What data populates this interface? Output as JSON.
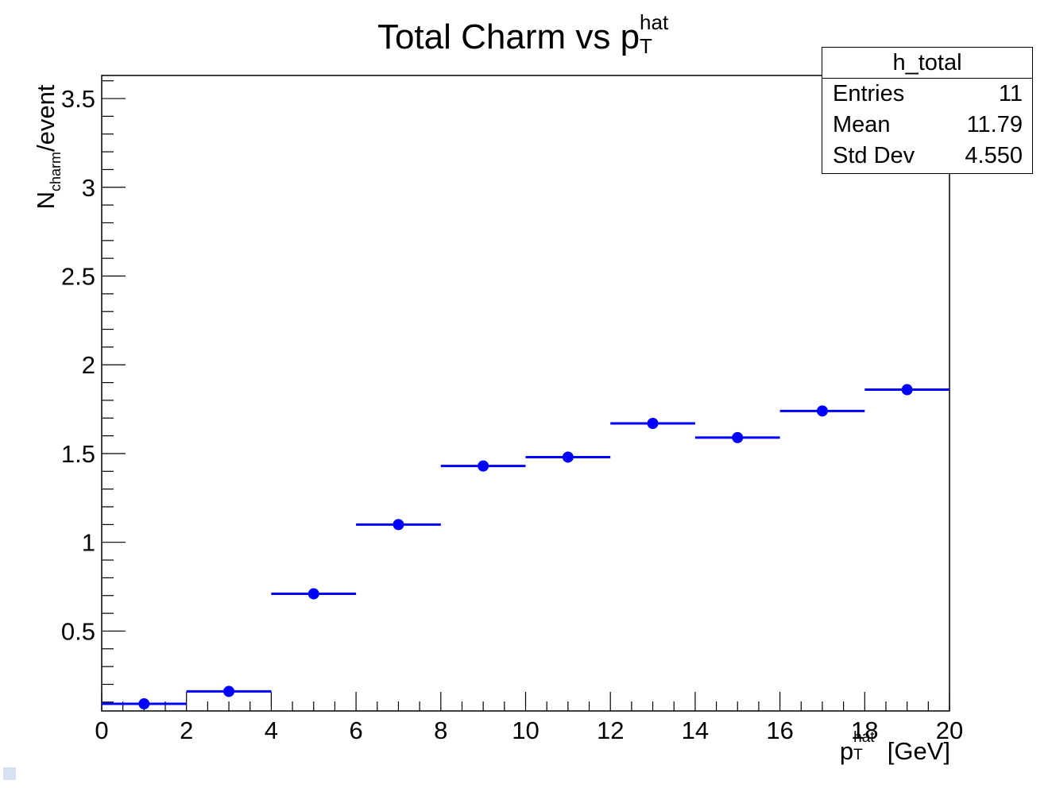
{
  "chart_data": {
    "type": "scatter",
    "title": "Total Charm vs p_T^hat",
    "title_parts": {
      "main": "Total Charm vs p",
      "sub": "T",
      "sup": "hat"
    },
    "xlabel": "p_T^hat [GeV]",
    "xlabel_parts": {
      "main": "p",
      "sub": "T",
      "sup": "hat",
      "unit": " [GeV]"
    },
    "ylabel": "N_charm/event",
    "ylabel_parts": {
      "main": "N",
      "sub": "charm",
      "rest": "/event"
    },
    "xlim": [
      0,
      20
    ],
    "ylim": [
      0.05,
      3.63
    ],
    "xticks": [
      "0",
      "2",
      "4",
      "6",
      "8",
      "10",
      "12",
      "14",
      "16",
      "18",
      "20"
    ],
    "yticks": [
      "0.5",
      "1",
      "1.5",
      "2",
      "2.5",
      "3",
      "3.5"
    ],
    "grid": false,
    "marker_color": "#0000ff",
    "series": [
      {
        "x": [
          1,
          3,
          5,
          7,
          9,
          11,
          13,
          15,
          17,
          19
        ],
        "xerr": [
          1,
          1,
          1,
          1,
          1,
          1,
          1,
          1,
          1,
          1
        ],
        "y": [
          0.09,
          0.16,
          0.71,
          1.1,
          1.43,
          1.48,
          1.67,
          1.59,
          1.74,
          1.86
        ],
        "yerr": [
          0.005,
          0.01,
          0.01,
          0.02,
          0.02,
          0.03,
          0.03,
          0.03,
          0.03,
          0.03
        ]
      }
    ],
    "stats_box": {
      "name": "h_total",
      "rows": [
        {
          "label": "Entries",
          "value": "11"
        },
        {
          "label": "Mean",
          "value": "11.79"
        },
        {
          "label": "Std Dev",
          "value": "4.550"
        }
      ]
    }
  }
}
